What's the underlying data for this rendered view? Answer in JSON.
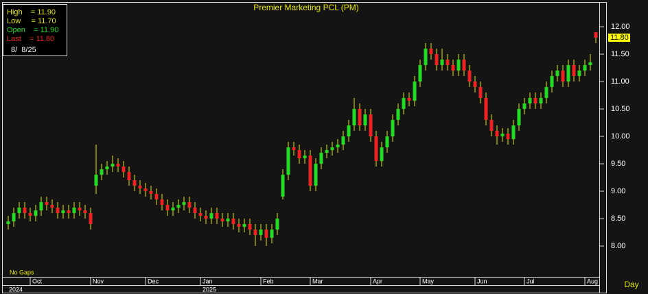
{
  "chart_data": {
    "type": "candlestick",
    "title": "Premier Marketing PCL (PM)",
    "categories": [
      null,
      null,
      null,
      null,
      "Oct",
      null,
      null,
      null,
      null,
      null,
      null,
      null,
      null,
      null,
      null,
      "Nov",
      null,
      null,
      null,
      null,
      null,
      null,
      null,
      null,
      null,
      "Dec",
      null,
      null,
      null,
      null,
      null,
      null,
      null,
      null,
      null,
      "Jan",
      null,
      null,
      null,
      null,
      null,
      null,
      null,
      null,
      null,
      null,
      "Feb",
      null,
      null,
      null,
      null,
      null,
      null,
      null,
      null,
      "Mar",
      null,
      null,
      null,
      null,
      null,
      null,
      null,
      null,
      null,
      null,
      "Apr",
      null,
      null,
      null,
      null,
      null,
      null,
      null,
      null,
      "May",
      null,
      null,
      null,
      null,
      null,
      null,
      null,
      null,
      null,
      "Jun",
      null,
      null,
      null,
      null,
      null,
      null,
      null,
      null,
      "Jul",
      null,
      null,
      null,
      null,
      null,
      null,
      null,
      null,
      null,
      null,
      "Aug",
      null,
      null
    ],
    "years": [
      "2024",
      null,
      null,
      null,
      null,
      null,
      null,
      null,
      null,
      null,
      null,
      null,
      null,
      null,
      null,
      null,
      null,
      null,
      null,
      null,
      null,
      null,
      null,
      null,
      null,
      null,
      null,
      null,
      null,
      null,
      null,
      null,
      null,
      null,
      null,
      "2025",
      null,
      null,
      null,
      null,
      null,
      null,
      null,
      null,
      null,
      null,
      null,
      null,
      null,
      null,
      null,
      null,
      null,
      null,
      null,
      null,
      null,
      null,
      null,
      null,
      null,
      null,
      null,
      null,
      null,
      null,
      null,
      null,
      null,
      null,
      null,
      null,
      null,
      null,
      null,
      null,
      null,
      null,
      null,
      null,
      null,
      null,
      null,
      null,
      null,
      null,
      null,
      null,
      null,
      null,
      null,
      null,
      null,
      null,
      null,
      null,
      null,
      null,
      null,
      null,
      null,
      null,
      null,
      null,
      null,
      null,
      null,
      null
    ],
    "open": [
      8.4,
      8.45,
      8.6,
      8.7,
      8.6,
      8.55,
      8.65,
      8.8,
      8.75,
      8.7,
      8.6,
      8.65,
      8.6,
      8.7,
      8.65,
      8.6,
      9.1,
      9.3,
      9.4,
      9.45,
      9.5,
      9.45,
      9.35,
      9.2,
      9.1,
      9.05,
      9.0,
      8.95,
      8.85,
      8.75,
      8.65,
      8.7,
      8.75,
      8.8,
      8.7,
      8.6,
      8.55,
      8.5,
      8.6,
      8.5,
      8.45,
      8.5,
      8.4,
      8.35,
      8.4,
      8.3,
      8.2,
      8.3,
      8.15,
      8.3,
      8.9,
      9.3,
      9.8,
      9.75,
      9.6,
      9.65,
      9.1,
      9.5,
      9.7,
      9.75,
      9.8,
      9.85,
      10.0,
      10.2,
      10.5,
      10.2,
      10.4,
      10.0,
      9.55,
      9.8,
      10.0,
      10.3,
      10.5,
      10.7,
      10.65,
      11.0,
      11.3,
      11.6,
      11.5,
      11.3,
      11.4,
      11.3,
      11.2,
      11.4,
      11.2,
      11.0,
      10.9,
      10.7,
      10.3,
      10.1,
      10.0,
      10.05,
      9.95,
      10.2,
      10.5,
      10.6,
      10.7,
      10.6,
      10.7,
      10.9,
      11.1,
      11.2,
      11.0,
      11.3,
      11.1,
      11.2,
      11.3,
      11.9
    ],
    "high": [
      8.55,
      8.7,
      8.8,
      8.8,
      8.7,
      8.75,
      8.9,
      8.9,
      8.85,
      8.8,
      8.75,
      8.75,
      8.8,
      8.8,
      8.75,
      8.7,
      9.85,
      9.5,
      9.55,
      9.65,
      9.6,
      9.55,
      9.45,
      9.3,
      9.2,
      9.15,
      9.1,
      9.05,
      8.95,
      8.85,
      8.8,
      8.85,
      8.9,
      8.9,
      8.8,
      8.7,
      8.65,
      8.7,
      8.7,
      8.6,
      8.6,
      8.6,
      8.5,
      8.5,
      8.5,
      8.4,
      8.4,
      8.4,
      8.4,
      8.6,
      9.4,
      9.9,
      9.9,
      9.85,
      9.75,
      9.75,
      9.6,
      9.8,
      9.85,
      9.9,
      9.95,
      10.1,
      10.3,
      10.7,
      10.6,
      10.5,
      10.5,
      10.1,
      9.9,
      10.1,
      10.4,
      10.6,
      10.8,
      10.8,
      11.1,
      11.4,
      11.7,
      11.7,
      11.6,
      11.6,
      11.5,
      11.4,
      11.5,
      11.5,
      11.3,
      11.1,
      11.0,
      10.8,
      10.4,
      10.2,
      10.15,
      10.15,
      10.3,
      10.6,
      10.7,
      10.8,
      10.8,
      10.8,
      11.0,
      11.2,
      11.3,
      11.3,
      11.4,
      11.4,
      11.3,
      11.4,
      11.5,
      11.9
    ],
    "low": [
      8.3,
      8.35,
      8.5,
      8.5,
      8.45,
      8.45,
      8.55,
      8.65,
      8.6,
      8.5,
      8.5,
      8.5,
      8.5,
      8.55,
      8.5,
      8.3,
      8.95,
      9.2,
      9.3,
      9.35,
      9.35,
      9.25,
      9.1,
      9.0,
      8.95,
      8.9,
      8.85,
      8.75,
      8.65,
      8.55,
      8.55,
      8.6,
      8.65,
      8.6,
      8.5,
      8.45,
      8.4,
      8.4,
      8.4,
      8.35,
      8.35,
      8.3,
      8.25,
      8.25,
      8.2,
      8.0,
      8.1,
      8.0,
      8.05,
      8.2,
      8.85,
      9.2,
      9.65,
      9.5,
      9.5,
      9.0,
      9.0,
      9.4,
      9.6,
      9.65,
      9.7,
      9.75,
      9.9,
      10.1,
      10.1,
      10.1,
      9.9,
      9.45,
      9.45,
      9.7,
      9.9,
      10.2,
      10.4,
      10.55,
      10.55,
      10.9,
      11.2,
      11.4,
      11.2,
      11.2,
      11.2,
      11.1,
      11.1,
      11.1,
      10.9,
      10.8,
      10.6,
      10.2,
      10.0,
      9.85,
      9.9,
      9.85,
      9.85,
      10.1,
      10.4,
      10.5,
      10.5,
      10.5,
      10.6,
      10.8,
      11.0,
      10.9,
      10.9,
      11.0,
      11.0,
      11.1,
      11.2,
      11.7
    ],
    "close": [
      8.45,
      8.6,
      8.7,
      8.6,
      8.55,
      8.65,
      8.8,
      8.75,
      8.7,
      8.6,
      8.65,
      8.6,
      8.7,
      8.65,
      8.6,
      8.4,
      9.3,
      9.4,
      9.45,
      9.5,
      9.45,
      9.35,
      9.2,
      9.1,
      9.05,
      9.0,
      8.95,
      8.85,
      8.75,
      8.65,
      8.7,
      8.75,
      8.8,
      8.7,
      8.6,
      8.55,
      8.5,
      8.6,
      8.5,
      8.45,
      8.5,
      8.4,
      8.35,
      8.4,
      8.3,
      8.2,
      8.3,
      8.15,
      8.3,
      8.5,
      9.3,
      9.8,
      9.75,
      9.6,
      9.65,
      9.1,
      9.5,
      9.7,
      9.75,
      9.8,
      9.85,
      10.0,
      10.2,
      10.5,
      10.2,
      10.4,
      10.0,
      9.55,
      9.8,
      10.0,
      10.3,
      10.5,
      10.7,
      10.65,
      11.0,
      11.3,
      11.6,
      11.5,
      11.3,
      11.4,
      11.3,
      11.2,
      11.4,
      11.2,
      11.0,
      10.9,
      10.7,
      10.3,
      10.1,
      10.0,
      10.05,
      9.95,
      10.2,
      10.5,
      10.6,
      10.7,
      10.6,
      10.7,
      10.9,
      11.1,
      11.2,
      11.0,
      11.3,
      11.1,
      11.2,
      11.3,
      11.35,
      11.8
    ],
    "last_price_label": "11.80",
    "ylim": [
      7.45,
      12.45
    ],
    "yticks": [
      {
        "value": 8,
        "label": "8.00"
      },
      {
        "value": 8.5,
        "label": "8.50"
      },
      {
        "value": 9,
        "label": "9.00"
      },
      {
        "value": 9.5,
        "label": "9.50"
      },
      {
        "value": 10,
        "label": "10.00"
      },
      {
        "value": 10.5,
        "label": "10.50"
      },
      {
        "value": 11,
        "label": "11.00"
      },
      {
        "value": 11.5,
        "label": "11.50"
      },
      {
        "value": 12,
        "label": "12.00"
      }
    ],
    "up_color": "#22dd22",
    "down_color": "#ee2222",
    "wick_color": "#e8e800",
    "info": [
      {
        "text": "High    = 11.90",
        "color": "#e8e800"
      },
      {
        "text": "Low     = 11.70",
        "color": "#e8e800"
      },
      {
        "text": "Open    = 11.90",
        "color": "#22dd22"
      },
      {
        "text": "Last    = 11.80",
        "color": "#ee2222"
      }
    ],
    "info_date": "8/  8/25",
    "gap_note": "No Gaps",
    "period": "Day"
  }
}
